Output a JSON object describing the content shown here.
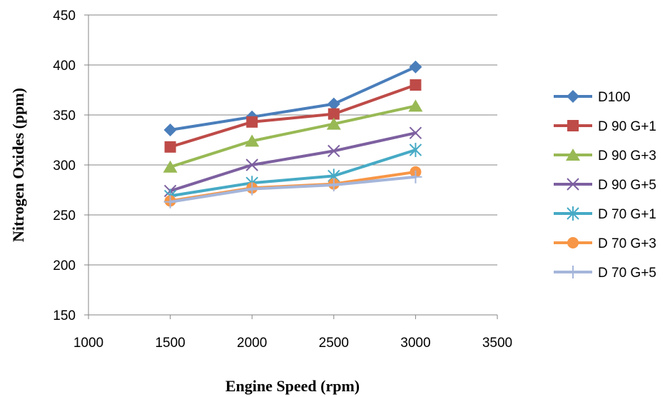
{
  "chart_data": {
    "type": "line",
    "title": "",
    "xlabel": "Engine Speed (rpm)",
    "ylabel": "Nitrogen Oxides  (ppm)",
    "xlim": [
      1000,
      3500
    ],
    "ylim": [
      150,
      450
    ],
    "xticks": [
      1000,
      1500,
      2000,
      2500,
      3000,
      3500
    ],
    "yticks": [
      150,
      200,
      250,
      300,
      350,
      400,
      450
    ],
    "grid": "horizontal",
    "legend_position": "right",
    "x": [
      1500,
      2000,
      2500,
      3000
    ],
    "series": [
      {
        "name": "D100",
        "values": [
          335,
          348,
          361,
          398
        ],
        "color": "#4A7EBB",
        "marker": "diamond"
      },
      {
        "name": "D 90 G+1",
        "values": [
          318,
          343,
          351,
          380
        ],
        "color": "#BE4B48",
        "marker": "square"
      },
      {
        "name": "D 90 G+3",
        "values": [
          298,
          324,
          341,
          359
        ],
        "color": "#98B954",
        "marker": "triangle"
      },
      {
        "name": "D 90 G+5",
        "values": [
          274,
          300,
          314,
          332
        ],
        "color": "#7D60A0",
        "marker": "x"
      },
      {
        "name": "D 70 G+1",
        "values": [
          269,
          282,
          289,
          315
        ],
        "color": "#46AAC5",
        "marker": "star"
      },
      {
        "name": "D 70 G+3",
        "values": [
          264,
          277,
          281,
          293
        ],
        "color": "#F79646",
        "marker": "circle"
      },
      {
        "name": "D 70 G+5",
        "values": [
          263,
          276,
          280,
          288
        ],
        "color": "#A5B6DA",
        "marker": "plus"
      }
    ]
  }
}
